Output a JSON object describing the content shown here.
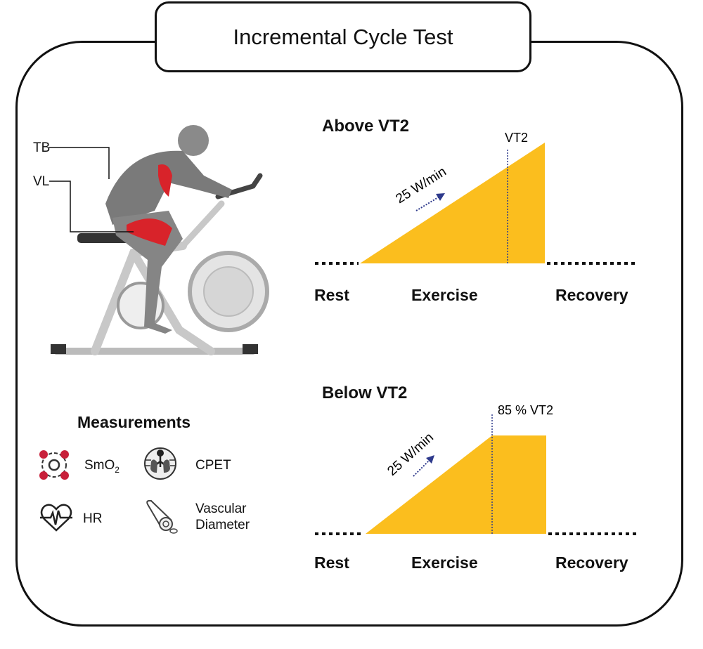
{
  "title": "Incremental Cycle Test",
  "figure": {
    "labels": {
      "tb": "TB",
      "vl": "VL"
    }
  },
  "above": {
    "heading": "Above VT2",
    "threshold_label": "VT2",
    "rate": "25 W/min",
    "phases": [
      "Rest",
      "Exercise",
      "Recovery"
    ]
  },
  "below": {
    "heading": "Below VT2",
    "threshold_label": "85 % VT2",
    "rate": "25 W/min",
    "phases": [
      "Rest",
      "Exercise",
      "Recovery"
    ]
  },
  "measurements": {
    "heading": "Measurements",
    "items": [
      {
        "label": "SmO",
        "sub": "2",
        "icon": "oxygen-molecule-icon"
      },
      {
        "label": "CPET",
        "icon": "lungs-icon"
      },
      {
        "label": "HR",
        "icon": "heart-rate-icon"
      },
      {
        "label": "Vascular",
        "label2": "Diameter",
        "icon": "blood-vessel-icon"
      }
    ]
  },
  "colors": {
    "ramp": "#FBBE1E",
    "arrow": "#2E3A8C",
    "muscle": "#D8232A"
  }
}
